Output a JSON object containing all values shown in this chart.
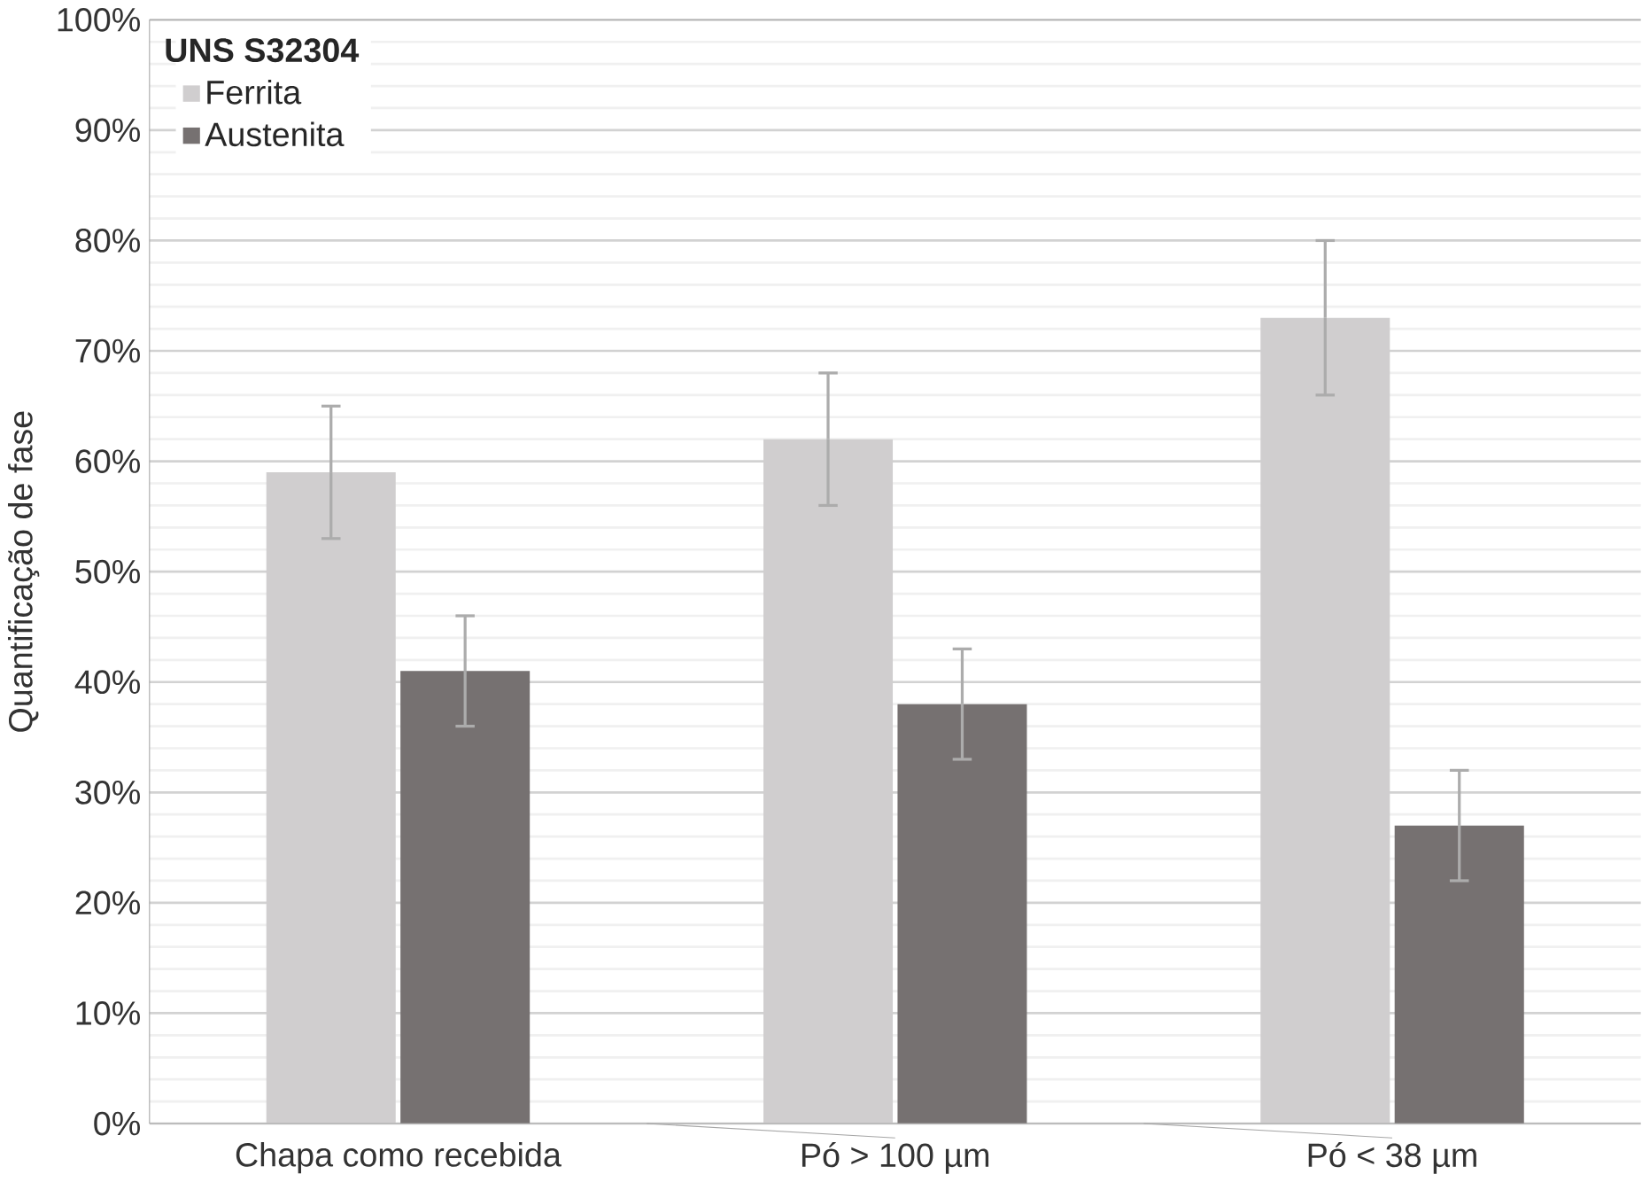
{
  "chart_data": {
    "type": "bar",
    "ylabel": "Quantificação de fase",
    "legend_title": "UNS S32304",
    "categories": [
      "Chapa como recebida",
      "Pó > 100 µm",
      "Pó < 38 µm"
    ],
    "series": [
      {
        "name": "Ferrita",
        "color": "#d0cecf",
        "values": [
          59,
          62,
          73
        ],
        "errors": [
          6,
          6,
          7
        ]
      },
      {
        "name": "Austenita",
        "color": "#767171",
        "values": [
          41,
          38,
          27
        ],
        "errors": [
          5,
          5,
          5
        ]
      }
    ],
    "ylim": [
      0,
      100
    ],
    "yticks": [
      {
        "value": 0,
        "label": "0%"
      },
      {
        "value": 10,
        "label": "10%"
      },
      {
        "value": 20,
        "label": "20%"
      },
      {
        "value": 30,
        "label": "30%"
      },
      {
        "value": 40,
        "label": "40%"
      },
      {
        "value": 50,
        "label": "50%"
      },
      {
        "value": 60,
        "label": "60%"
      },
      {
        "value": 70,
        "label": "70%"
      },
      {
        "value": 80,
        "label": "80%"
      },
      {
        "value": 90,
        "label": "90%"
      },
      {
        "value": 100,
        "label": "100%"
      }
    ],
    "grid": "y",
    "legend": "top left"
  }
}
